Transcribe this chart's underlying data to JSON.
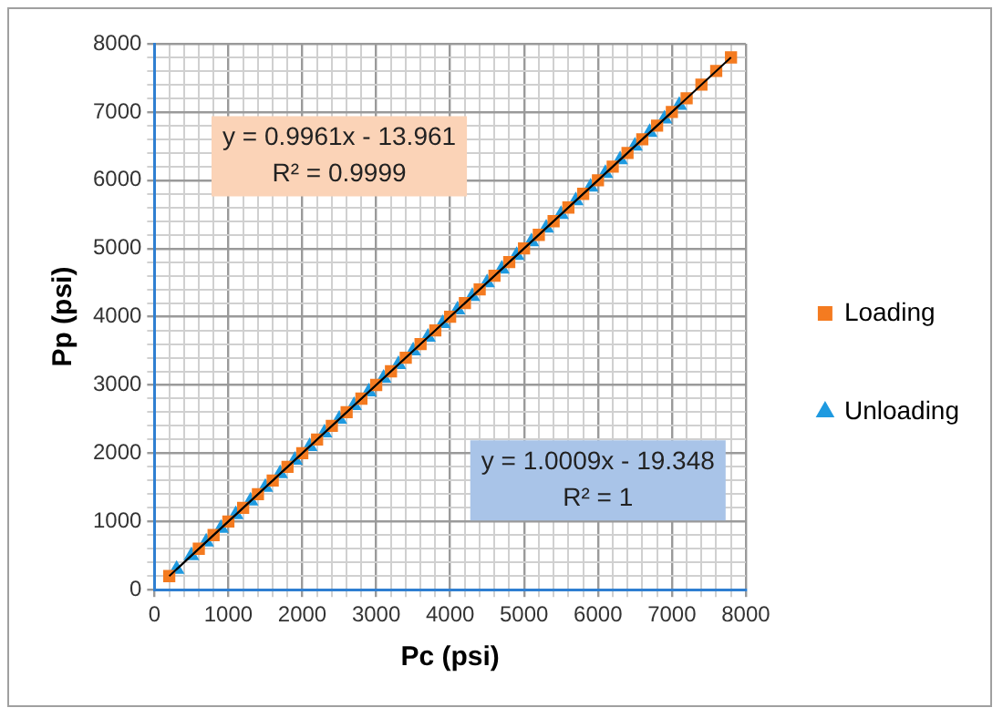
{
  "chart_data": {
    "type": "scatter",
    "xlabel": "Pc (psi)",
    "ylabel": "Pp (psi)",
    "xlim": [
      0,
      8000
    ],
    "ylim": [
      0,
      8000
    ],
    "xticks": [
      0,
      {
        "value": 200,
        "label": null
      },
      {
        "value": 400,
        "label": null
      },
      {
        "value": 600,
        "label": null
      },
      {
        "value": 800,
        "label": null
      },
      1000,
      {
        "value": 1200,
        "label": null
      },
      {
        "value": 1400,
        "label": null
      },
      {
        "value": 1600,
        "label": null
      },
      {
        "value": 1800,
        "label": null
      },
      2000,
      {
        "value": 2200,
        "label": null
      },
      {
        "value": 2400,
        "label": null
      },
      {
        "value": 2600,
        "label": null
      },
      {
        "value": 2800,
        "label": null
      },
      3000,
      {
        "value": 3200,
        "label": null
      },
      {
        "value": 3400,
        "label": null
      },
      {
        "value": 3600,
        "label": null
      },
      {
        "value": 3800,
        "label": null
      },
      4000,
      {
        "value": 4200,
        "label": null
      },
      {
        "value": 4400,
        "label": null
      },
      {
        "value": 4600,
        "label": null
      },
      {
        "value": 4800,
        "label": null
      },
      5000,
      {
        "value": 5200,
        "label": null
      },
      {
        "value": 5400,
        "label": null
      },
      {
        "value": 5600,
        "label": null
      },
      {
        "value": 5800,
        "label": null
      },
      6000,
      {
        "value": 6200,
        "label": null
      },
      {
        "value": 6400,
        "label": null
      },
      {
        "value": 6600,
        "label": null
      },
      {
        "value": 6800,
        "label": null
      },
      7000,
      {
        "value": 7200,
        "label": null
      },
      {
        "value": 7400,
        "label": null
      },
      {
        "value": 7600,
        "label": null
      },
      {
        "value": 7800,
        "label": null
      },
      8000
    ],
    "yticks": [
      0,
      {
        "value": 200,
        "label": null
      },
      {
        "value": 400,
        "label": null
      },
      {
        "value": 600,
        "label": null
      },
      {
        "value": 800,
        "label": null
      },
      1000,
      {
        "value": 1200,
        "label": null
      },
      {
        "value": 1400,
        "label": null
      },
      {
        "value": 1600,
        "label": null
      },
      {
        "value": 1800,
        "label": null
      },
      2000,
      {
        "value": 2200,
        "label": null
      },
      {
        "value": 2400,
        "label": null
      },
      {
        "value": 2600,
        "label": null
      },
      {
        "value": 2800,
        "label": null
      },
      3000,
      {
        "value": 3200,
        "label": null
      },
      {
        "value": 3400,
        "label": null
      },
      {
        "value": 3600,
        "label": null
      },
      {
        "value": 3800,
        "label": null
      },
      4000,
      {
        "value": 4200,
        "label": null
      },
      {
        "value": 4400,
        "label": null
      },
      {
        "value": 4600,
        "label": null
      },
      {
        "value": 4800,
        "label": null
      },
      5000,
      {
        "value": 5200,
        "label": null
      },
      {
        "value": 5400,
        "label": null
      },
      {
        "value": 5600,
        "label": null
      },
      {
        "value": 5800,
        "label": null
      },
      6000,
      {
        "value": 6200,
        "label": null
      },
      {
        "value": 6400,
        "label": null
      },
      {
        "value": 6600,
        "label": null
      },
      {
        "value": 6800,
        "label": null
      },
      7000,
      {
        "value": 7200,
        "label": null
      },
      {
        "value": 7400,
        "label": null
      },
      {
        "value": 7600,
        "label": null
      },
      {
        "value": 7800,
        "label": null
      },
      8000
    ],
    "grid": true,
    "legend": "right",
    "annotations": [
      "y = 0.9961x - 13.961\nR² = 0.9999",
      "y = 1.0009x - 19.348\nR² = 1"
    ],
    "series": [
      {
        "name": "Loading",
        "color": "#f47b20",
        "marker": "square",
        "x": [
          200,
          600,
          800,
          1000,
          1200,
          1400,
          1600,
          1800,
          2000,
          2200,
          2400,
          2600,
          2800,
          3000,
          3200,
          3400,
          3600,
          3800,
          4000,
          4200,
          4400,
          4600,
          4800,
          5000,
          5200,
          5400,
          5600,
          5800,
          6000,
          6200,
          6400,
          6600,
          6800,
          7000,
          7200,
          7400,
          7600,
          7800
        ],
        "values": [
          200,
          600,
          800,
          1000,
          1200,
          1400,
          1600,
          1800,
          2000,
          2200,
          2400,
          2600,
          2800,
          3000,
          3200,
          3400,
          3600,
          3800,
          4000,
          4200,
          4400,
          4600,
          4800,
          5000,
          5200,
          5400,
          5600,
          5800,
          6000,
          6200,
          6400,
          6600,
          6800,
          7000,
          7200,
          7400,
          7600,
          7800
        ]
      },
      {
        "name": "Unloading",
        "color": "#1f9ae0",
        "marker": "triangle",
        "x": [
          300,
          500,
          700,
          900,
          1100,
          1300,
          1500,
          1700,
          1900,
          2100,
          2300,
          2500,
          2700,
          2900,
          3100,
          3300,
          3500,
          3700,
          3900,
          4100,
          4300,
          4500,
          4700,
          4900,
          5100,
          5300,
          5500,
          5700,
          5900,
          6100,
          6300,
          6500,
          6700,
          6900,
          7100
        ],
        "values": [
          300,
          500,
          700,
          900,
          1100,
          1300,
          1500,
          1700,
          1900,
          2100,
          2300,
          2500,
          2700,
          2900,
          3100,
          3300,
          3500,
          3700,
          3900,
          4100,
          4300,
          4500,
          4700,
          4900,
          5100,
          5300,
          5500,
          5700,
          5900,
          6100,
          6300,
          6500,
          6700,
          6900,
          7100
        ]
      },
      {
        "type": "line",
        "color": "#000000",
        "marker": "none",
        "x": [
          200,
          7800
        ],
        "values": [
          200,
          7800
        ]
      },
      {
        "type": "line",
        "color": "#000000",
        "marker": "none",
        "x": [
          300,
          7100
        ],
        "values": [
          300,
          7100
        ]
      }
    ]
  }
}
